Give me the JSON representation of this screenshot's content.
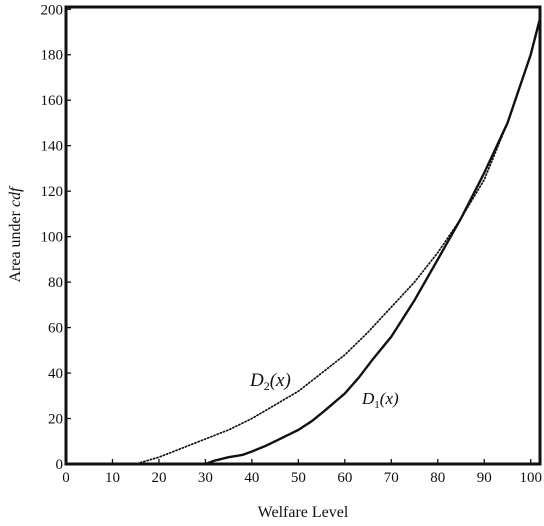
{
  "chart_data": {
    "type": "line",
    "title": "",
    "xlabel": "Welfare Level",
    "ylabel_main": "Area under ",
    "ylabel_italic": "cdf",
    "xlim": [
      0,
      102
    ],
    "ylim": [
      0,
      201
    ],
    "x_ticks": [
      0,
      10,
      20,
      30,
      40,
      50,
      60,
      70,
      80,
      90,
      100
    ],
    "y_ticks": [
      0,
      20,
      40,
      60,
      80,
      100,
      120,
      140,
      160,
      180,
      200
    ],
    "grid": false,
    "series": [
      {
        "name": "D1(x)",
        "label_main": "D",
        "label_sub": "1",
        "label_arg": "(x)",
        "style": "solid-dotted",
        "x": [
          0,
          30,
          32,
          35,
          38,
          40,
          43,
          46,
          50,
          53,
          56,
          60,
          63,
          66,
          70,
          75,
          80,
          85,
          90,
          95,
          100,
          102
        ],
        "y": [
          0,
          0,
          1.5,
          3,
          4,
          5.5,
          8,
          11,
          15,
          19,
          24,
          31,
          38,
          46,
          56,
          72,
          90,
          108,
          128,
          150,
          180,
          196
        ]
      },
      {
        "name": "D2(x)",
        "label_main": "D",
        "label_sub": "2",
        "label_arg": "(x)",
        "style": "dotted",
        "x": [
          0,
          15,
          20,
          25,
          30,
          35,
          40,
          45,
          50,
          55,
          60,
          65,
          70,
          75,
          80,
          85,
          90,
          95,
          100,
          102
        ],
        "y": [
          0,
          0,
          3,
          7,
          11,
          15,
          20,
          26,
          32,
          40,
          48,
          58,
          69,
          80,
          93,
          108,
          125,
          150,
          180,
          196
        ]
      }
    ]
  }
}
